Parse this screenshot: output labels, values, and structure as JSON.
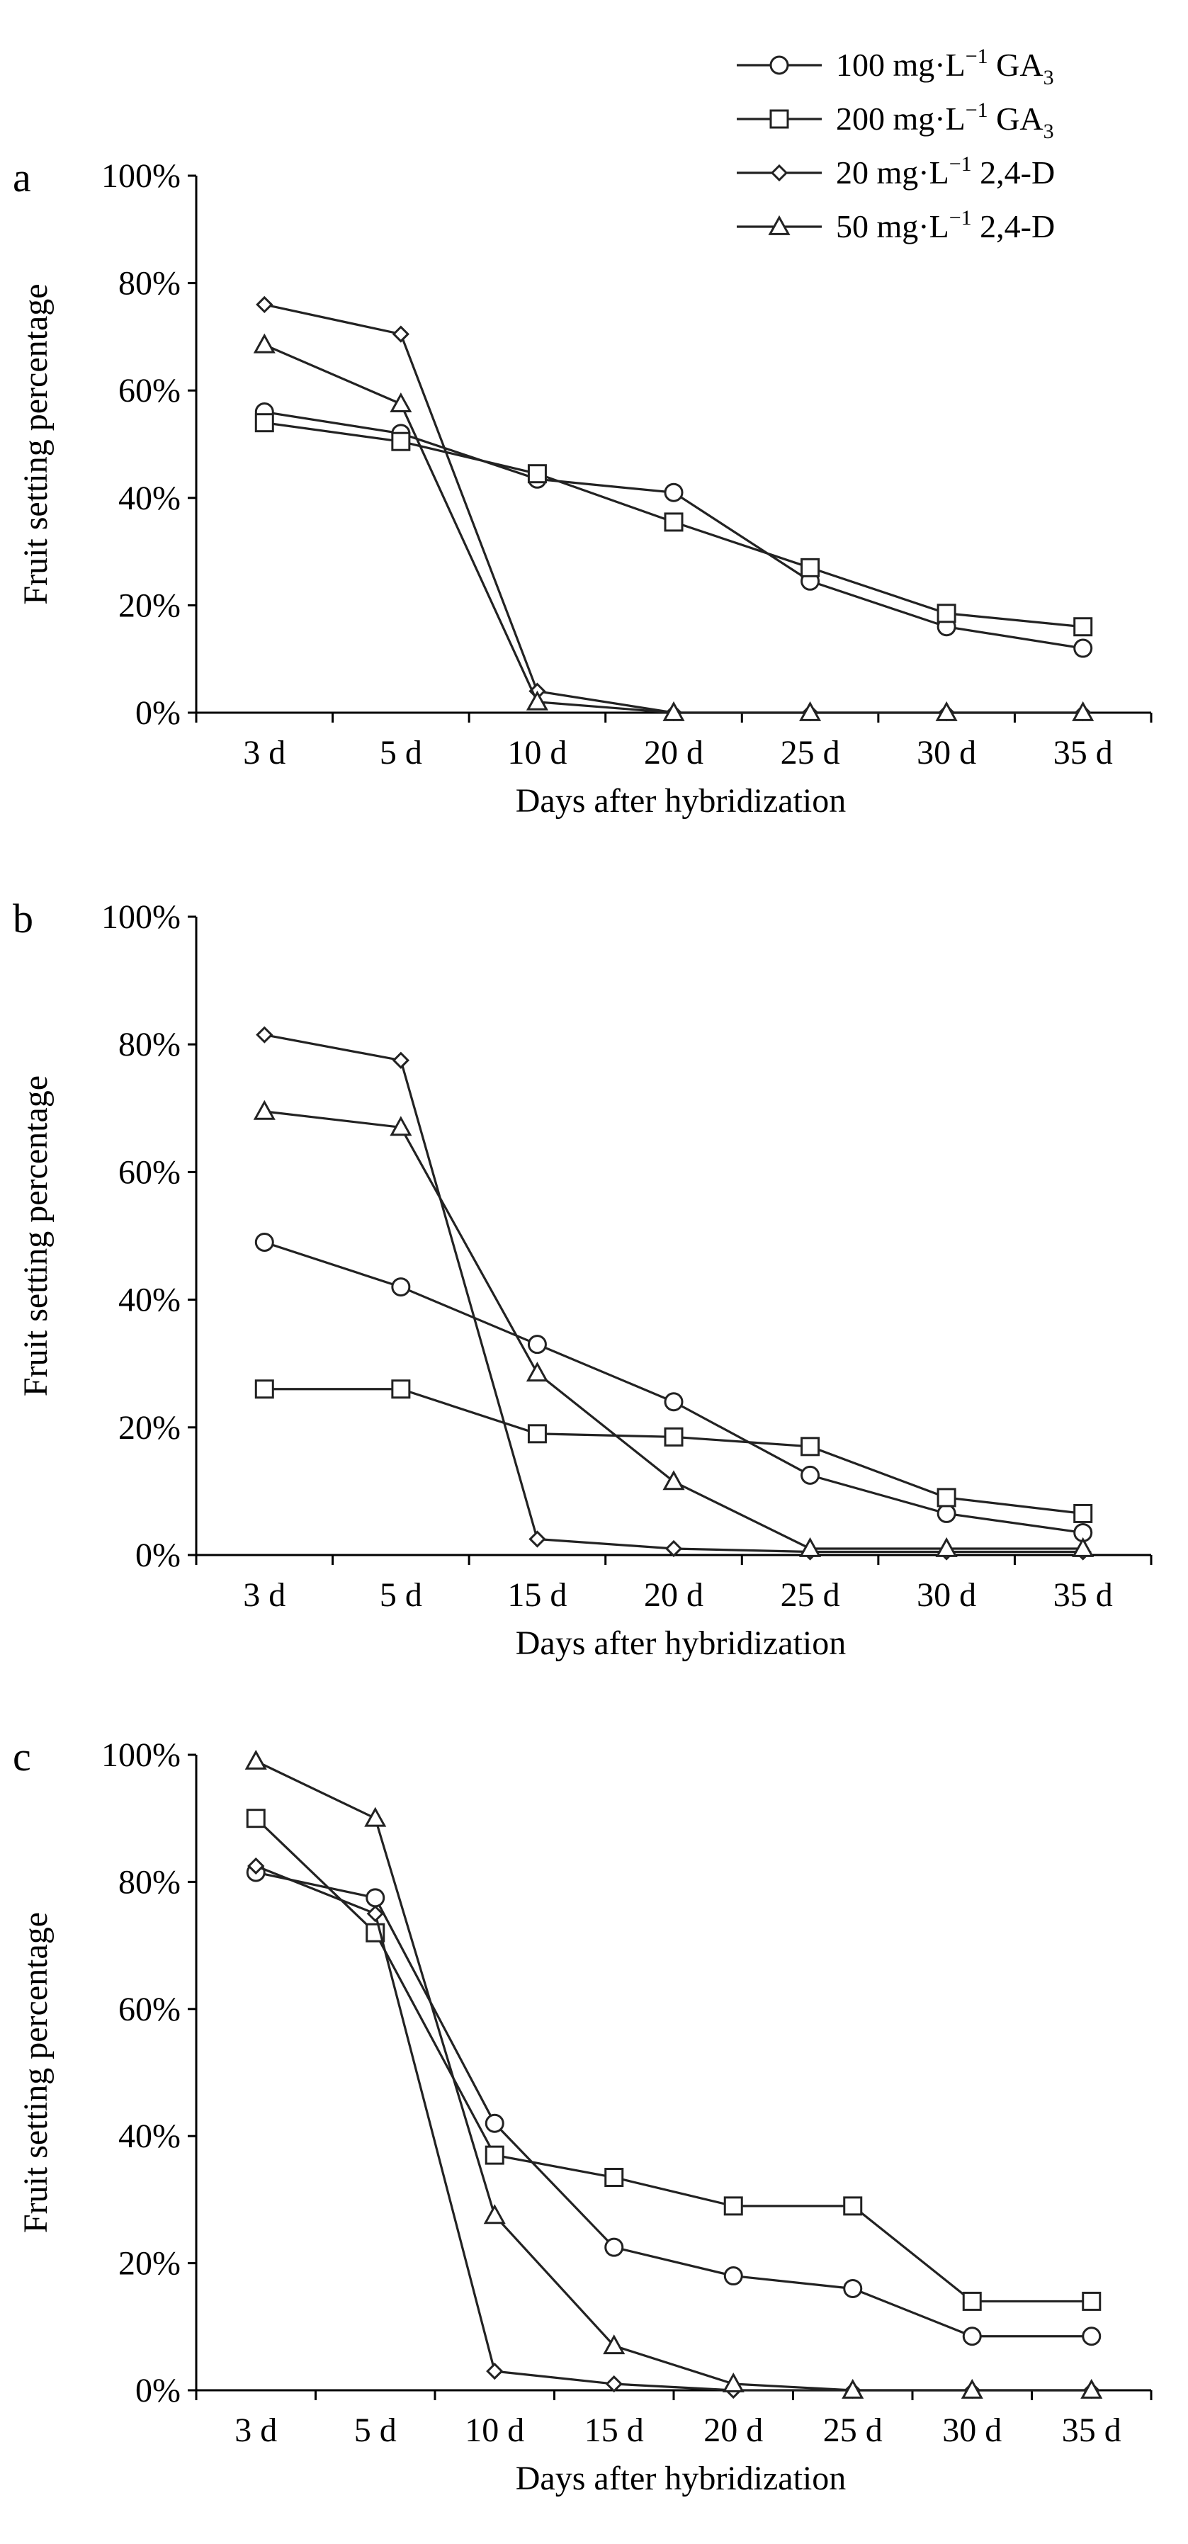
{
  "legend": {
    "items": [
      {
        "marker": "circle",
        "html_parts": [
          "100 mg·L",
          "−1",
          " GA",
          "3"
        ]
      },
      {
        "marker": "square",
        "html_parts": [
          "200 mg·L",
          "−1",
          " GA",
          "3"
        ]
      },
      {
        "marker": "diamond",
        "html_parts": [
          "20 mg·L",
          "−1",
          " 2,4-D",
          ""
        ]
      },
      {
        "marker": "triangle",
        "html_parts": [
          "50 mg·L",
          "−1",
          " 2,4-D",
          ""
        ]
      }
    ]
  },
  "chart_data": [
    {
      "type": "line",
      "panel": "a",
      "categories": [
        "3 d",
        "5 d",
        "10 d",
        "20 d",
        "25 d",
        "30 d",
        "35 d"
      ],
      "xlabel": "Days after hybridization",
      "ylabel": "Fruit setting percentage",
      "ylim": [
        0,
        100
      ],
      "yticks": [
        "0%",
        "20%",
        "40%",
        "60%",
        "80%",
        "100%"
      ],
      "legend": "top-right",
      "series": [
        {
          "name": "100 mg·L−1 GA3",
          "marker": "circle",
          "values": [
            56,
            52,
            43.5,
            41,
            24.5,
            16,
            12
          ]
        },
        {
          "name": "200 mg·L−1 GA3",
          "marker": "square",
          "values": [
            54,
            50.5,
            44.5,
            35.5,
            27,
            18.5,
            16
          ]
        },
        {
          "name": "20 mg·L−1 2,4-D",
          "marker": "diamond",
          "values": [
            76,
            70.5,
            4,
            0,
            0,
            0,
            0
          ]
        },
        {
          "name": "50 mg·L−1 2,4-D",
          "marker": "triangle",
          "values": [
            68.5,
            57.5,
            2,
            0,
            0,
            0,
            0
          ]
        }
      ]
    },
    {
      "type": "line",
      "panel": "b",
      "categories": [
        "3 d",
        "5 d",
        "15 d",
        "20 d",
        "25 d",
        "30 d",
        "35 d"
      ],
      "xlabel": "Days after hybridization",
      "ylabel": "Fruit setting percentage",
      "ylim": [
        0,
        100
      ],
      "yticks": [
        "0%",
        "20%",
        "40%",
        "60%",
        "80%",
        "100%"
      ],
      "series": [
        {
          "name": "100 mg·L−1 GA3",
          "marker": "circle",
          "values": [
            49,
            42,
            33,
            24,
            12.5,
            6.5,
            3.5
          ]
        },
        {
          "name": "200 mg·L−1 GA3",
          "marker": "square",
          "values": [
            26,
            26,
            19,
            18.5,
            17,
            9,
            6.5
          ]
        },
        {
          "name": "20 mg·L−1 2,4-D",
          "marker": "diamond",
          "values": [
            81.5,
            77.5,
            2.5,
            1,
            0.5,
            0.5,
            0.5
          ]
        },
        {
          "name": "50 mg·L−1 2,4-D",
          "marker": "triangle",
          "values": [
            69.5,
            67,
            28.5,
            11.5,
            1,
            1,
            1
          ]
        }
      ]
    },
    {
      "type": "line",
      "panel": "c",
      "categories": [
        "3 d",
        "5 d",
        "10 d",
        "15 d",
        "20 d",
        "25 d",
        "30 d",
        "35 d"
      ],
      "xlabel": "Days after hybridization",
      "ylabel": "Fruit setting percentage",
      "ylim": [
        0,
        100
      ],
      "yticks": [
        "0%",
        "20%",
        "40%",
        "60%",
        "80%",
        "100%"
      ],
      "series": [
        {
          "name": "100 mg·L−1 GA3",
          "marker": "circle",
          "values": [
            81.5,
            77.5,
            42,
            22.5,
            18,
            16,
            8.5,
            8.5
          ]
        },
        {
          "name": "200 mg·L−1 GA3",
          "marker": "square",
          "values": [
            90,
            72,
            37,
            33.5,
            29,
            29,
            14,
            14
          ]
        },
        {
          "name": "20 mg·L−1 2,4-D",
          "marker": "diamond",
          "values": [
            82.5,
            75,
            3,
            1,
            0,
            0,
            0,
            0
          ]
        },
        {
          "name": "50 mg·L−1 2,4-D",
          "marker": "triangle",
          "values": [
            99,
            90,
            27.5,
            7,
            1,
            0,
            0,
            0
          ]
        }
      ]
    }
  ]
}
